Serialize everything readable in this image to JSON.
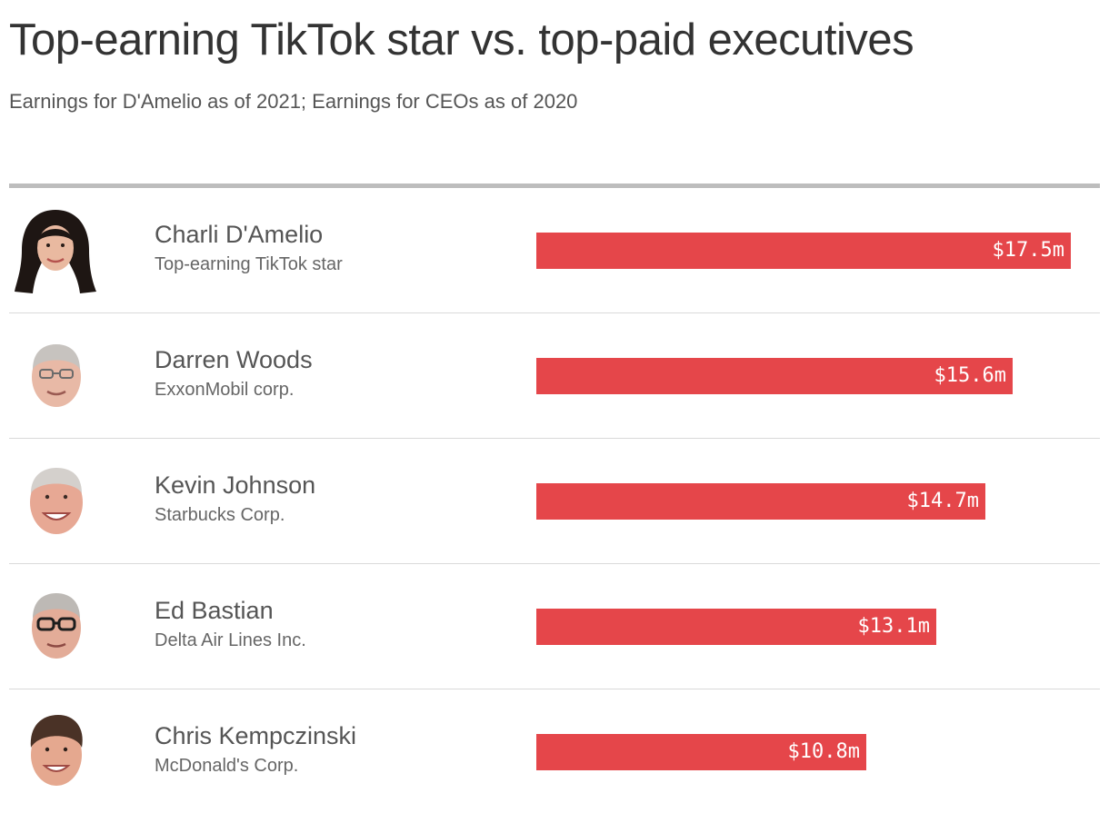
{
  "title": "Top-earning TikTok star vs. top-paid executives",
  "subtitle": "Earnings for D'Amelio as of 2021; Earnings for CEOs as of 2020",
  "colors": {
    "bar": "#e5464a",
    "rule": "#bdbdbd",
    "divider": "#d9d9d9"
  },
  "rows": [
    {
      "name": "Charli D'Amelio",
      "org": "Top-earning TikTok star",
      "label": "$17.5m",
      "avatar": "portrait-photo"
    },
    {
      "name": "Darren Woods",
      "org": "ExxonMobil corp.",
      "label": "$15.6m",
      "avatar": "portrait-photo"
    },
    {
      "name": "Kevin Johnson",
      "org": "Starbucks Corp.",
      "label": "$14.7m",
      "avatar": "portrait-photo"
    },
    {
      "name": "Ed Bastian",
      "org": "Delta Air Lines Inc.",
      "label": "$13.1m",
      "avatar": "portrait-photo"
    },
    {
      "name": "Chris Kempczinski",
      "org": "McDonald's Corp.",
      "label": "$10.8m",
      "avatar": "portrait-photo"
    }
  ],
  "chart_data": {
    "type": "bar",
    "orientation": "horizontal",
    "categories": [
      "Charli D'Amelio",
      "Darren Woods",
      "Kevin Johnson",
      "Ed Bastian",
      "Chris Kempczinski"
    ],
    "values": [
      17.5,
      15.6,
      14.7,
      13.1,
      10.8
    ],
    "unit": "$m",
    "xlim": [
      0,
      17.5
    ],
    "title": "Top-earning TikTok star vs. top-paid executives",
    "subtitle": "Earnings for D'Amelio as of 2021; Earnings for CEOs as of 2020",
    "data_labels": [
      "$17.5m",
      "$15.6m",
      "$14.7m",
      "$13.1m",
      "$10.8m"
    ],
    "grid": false,
    "legend": "none"
  }
}
